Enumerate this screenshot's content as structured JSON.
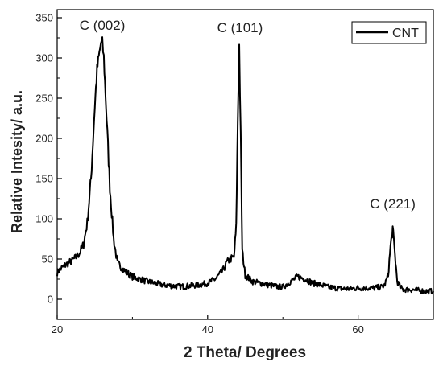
{
  "chart_data": {
    "type": "line",
    "title": "",
    "xlabel": "2 Theta/ Degrees",
    "ylabel": "Relative Intesity/ a.u.",
    "xlim": [
      20,
      70
    ],
    "ylim": [
      -25,
      360
    ],
    "x_ticks": [
      20,
      40,
      60
    ],
    "y_ticks": [
      0,
      50,
      100,
      150,
      200,
      250,
      300,
      350
    ],
    "grid": false,
    "legend_position": "top-right",
    "line_color": "#000000",
    "series": [
      {
        "name": "CNT",
        "x": [
          20,
          20.5,
          21,
          21.5,
          22,
          22.5,
          23,
          23.5,
          24,
          24.5,
          25,
          25.3,
          25.6,
          25.8,
          26,
          26.2,
          26.5,
          27,
          27.5,
          28,
          29,
          30,
          31,
          32,
          33,
          34,
          35,
          36,
          37,
          38,
          39,
          40,
          41,
          42,
          42.5,
          43,
          43.5,
          43.8,
          44,
          44.2,
          44.4,
          44.6,
          45,
          46,
          47,
          48,
          49,
          50,
          51,
          52,
          53,
          54,
          55,
          56,
          57,
          58,
          59,
          60,
          61,
          62,
          63,
          63.5,
          64,
          64.3,
          64.6,
          64.9,
          65.2,
          65.6,
          66,
          67,
          68,
          69,
          70
        ],
        "y": [
          33,
          38,
          42,
          45,
          48,
          52,
          58,
          68,
          95,
          150,
          240,
          285,
          305,
          318,
          318,
          300,
          240,
          140,
          75,
          45,
          35,
          28,
          25,
          22,
          20,
          18,
          17,
          16,
          16,
          17,
          18,
          20,
          25,
          35,
          45,
          50,
          52,
          90,
          220,
          315,
          200,
          60,
          30,
          22,
          20,
          18,
          16,
          15,
          22,
          28,
          25,
          20,
          18,
          15,
          14,
          13,
          13,
          14,
          14,
          14,
          15,
          17,
          30,
          65,
          88,
          55,
          22,
          15,
          12,
          12,
          11,
          10,
          10
        ]
      }
    ],
    "annotations": [
      {
        "text": "C (002)",
        "x": 26,
        "y": 335
      },
      {
        "text": "C (101)",
        "x": 44.3,
        "y": 332
      },
      {
        "text": "C (221)",
        "x": 64.6,
        "y": 113
      }
    ]
  }
}
